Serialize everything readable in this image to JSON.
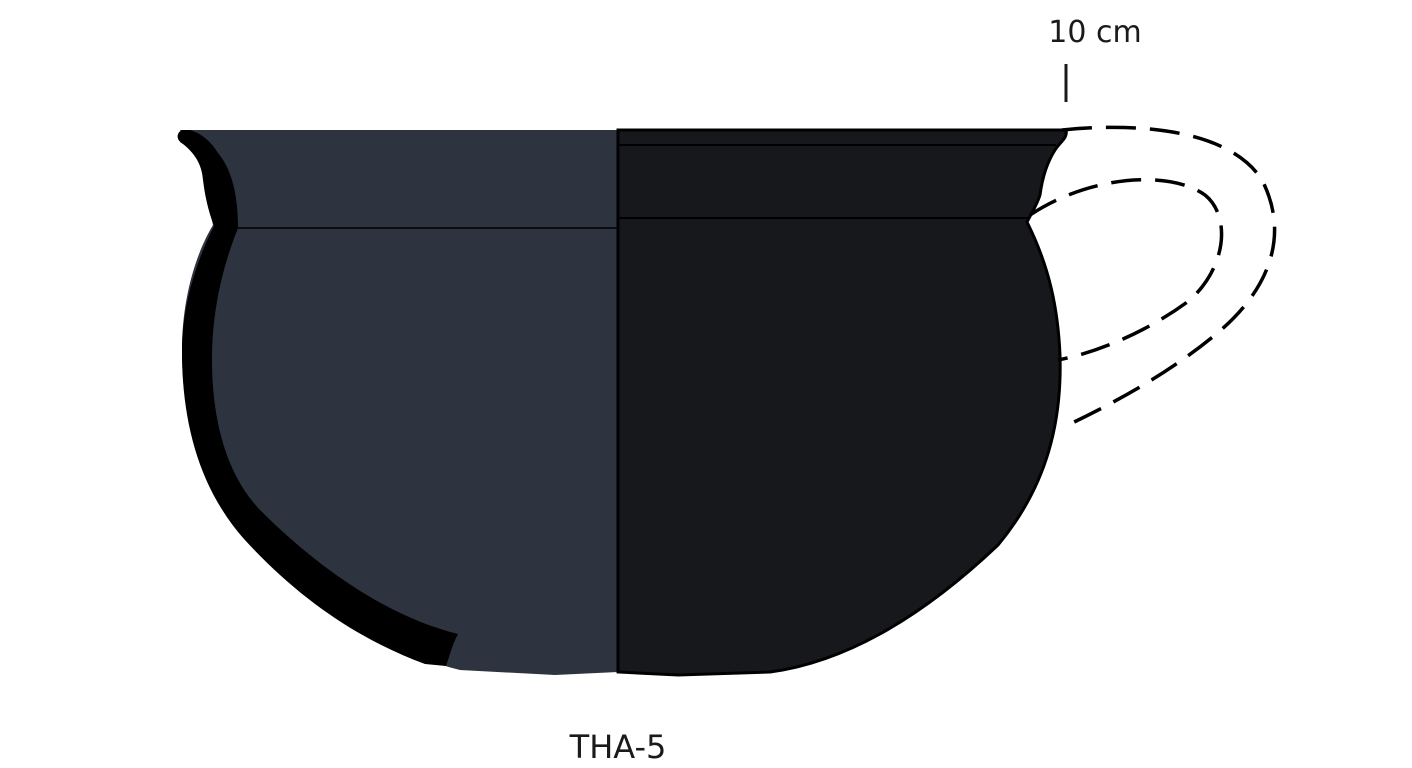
{
  "drawing": {
    "scale_label": "10 cm",
    "catalog_id": "THA-5",
    "colors": {
      "section_fill": "#2d333f",
      "exterior_fill": "#17181c",
      "wall_profile": "#000000",
      "outline": "#000000",
      "handle_dash": "#000000"
    },
    "icons": {
      "scale_bar": "scale-tick-icon",
      "handle": "dashed-handle-reconstruction"
    }
  }
}
